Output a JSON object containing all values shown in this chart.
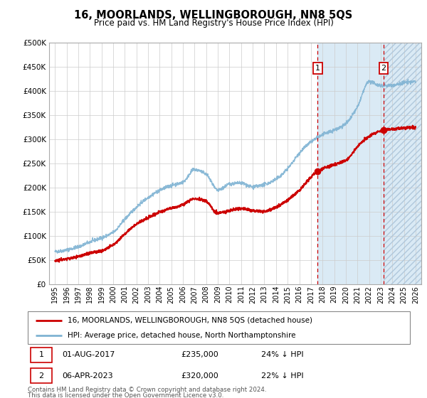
{
  "title": "16, MOORLANDS, WELLINGBOROUGH, NN8 5QS",
  "subtitle": "Price paid vs. HM Land Registry's House Price Index (HPI)",
  "legend_label_red": "16, MOORLANDS, WELLINGBOROUGH, NN8 5QS (detached house)",
  "legend_label_blue": "HPI: Average price, detached house, North Northamptonshire",
  "annotation1_date": "01-AUG-2017",
  "annotation1_price": "£235,000",
  "annotation1_hpi": "24% ↓ HPI",
  "annotation2_date": "06-APR-2023",
  "annotation2_price": "£320,000",
  "annotation2_hpi": "22% ↓ HPI",
  "footnote1": "Contains HM Land Registry data © Crown copyright and database right 2024.",
  "footnote2": "This data is licensed under the Open Government Licence v3.0.",
  "red_color": "#cc0000",
  "blue_color": "#7fb3d3",
  "shade_color": "#daeaf5",
  "grid_color": "#cccccc",
  "ylim": [
    0,
    500000
  ],
  "yticks": [
    0,
    50000,
    100000,
    150000,
    200000,
    250000,
    300000,
    350000,
    400000,
    450000,
    500000
  ],
  "x_start_year": 1995,
  "x_end_year": 2026,
  "sale1_year": 2017.58,
  "sale2_year": 2023.25,
  "sale1_red_value": 235000,
  "sale2_red_value": 320000,
  "blue_anchors_years": [
    1995,
    1997,
    1998,
    2000,
    2001,
    2002,
    2003,
    2004,
    2005,
    2006,
    2007,
    2008,
    2009,
    2010,
    2011,
    2012,
    2013,
    2014,
    2015,
    2016,
    2017,
    2018,
    2019,
    2020,
    2021,
    2022,
    2023,
    2024,
    2025,
    2026
  ],
  "blue_anchors_vals": [
    68000,
    78000,
    88000,
    108000,
    135000,
    160000,
    180000,
    195000,
    205000,
    212000,
    238000,
    228000,
    195000,
    208000,
    210000,
    202000,
    207000,
    218000,
    240000,
    272000,
    295000,
    310000,
    320000,
    333000,
    368000,
    420000,
    412000,
    412000,
    418000,
    420000
  ],
  "red_anchors_years": [
    1995,
    1997,
    1998,
    1999,
    2000,
    2001,
    2002,
    2003,
    2004,
    2005,
    2006,
    2007,
    2008,
    2009,
    2010,
    2011,
    2012,
    2013,
    2014,
    2015,
    2016,
    2017,
    2017.58,
    2018,
    2019,
    2020,
    2021,
    2022,
    2023.25,
    2024,
    2025,
    2026
  ],
  "red_anchors_vals": [
    50000,
    58000,
    65000,
    70000,
    82000,
    105000,
    125000,
    138000,
    150000,
    158000,
    165000,
    178000,
    172000,
    148000,
    153000,
    158000,
    153000,
    152000,
    160000,
    175000,
    195000,
    222000,
    235000,
    240000,
    248000,
    257000,
    285000,
    307000,
    320000,
    322000,
    324000,
    325000
  ],
  "noise_seed": 42,
  "noise_blue": 1800,
  "noise_red": 1500
}
